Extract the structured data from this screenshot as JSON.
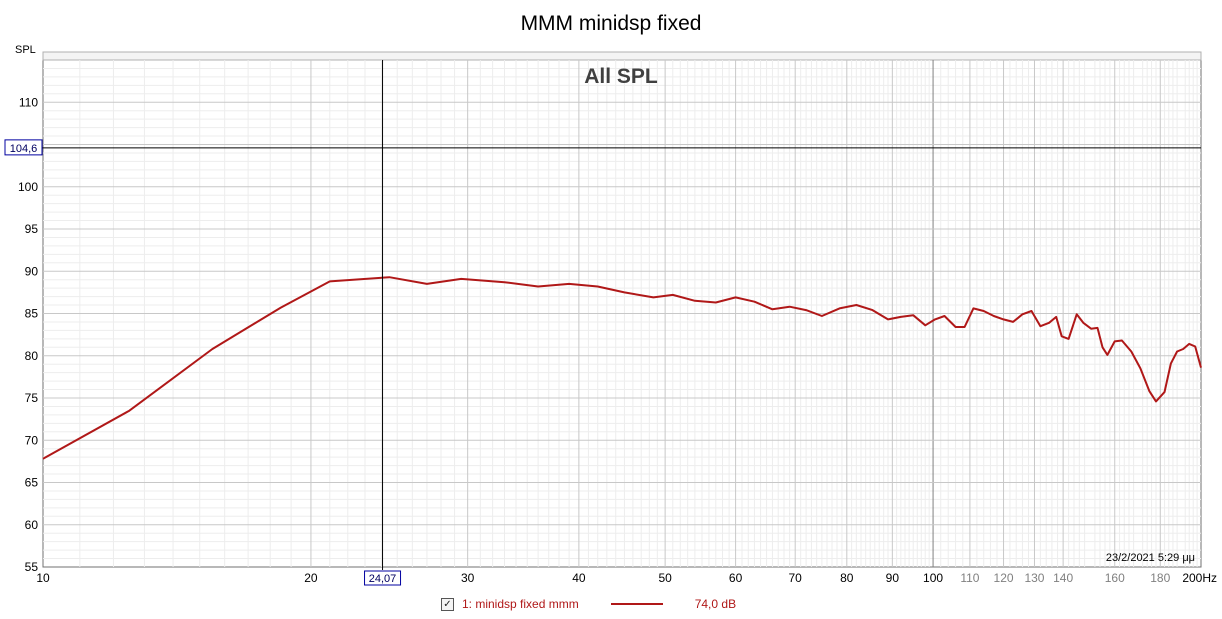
{
  "chart_data": {
    "type": "line",
    "title": "MMM minidsp fixed",
    "subtitle": "All SPL",
    "ylabel": "SPL",
    "xscale": "log",
    "xlim": [
      10,
      200
    ],
    "ylim": [
      55,
      115
    ],
    "grid": true,
    "x_ticks": [
      {
        "value": 10,
        "label": "10"
      },
      {
        "value": 20,
        "label": "20"
      },
      {
        "value": 30,
        "label": "30"
      },
      {
        "value": 40,
        "label": "40"
      },
      {
        "value": 50,
        "label": "50"
      },
      {
        "value": 60,
        "label": "60"
      },
      {
        "value": 70,
        "label": "70"
      },
      {
        "value": 80,
        "label": "80"
      },
      {
        "value": 90,
        "label": "90"
      },
      {
        "value": 100,
        "label": "100"
      },
      {
        "value": 110,
        "label": "110"
      },
      {
        "value": 120,
        "label": "120"
      },
      {
        "value": 130,
        "label": "130"
      },
      {
        "value": 140,
        "label": "140"
      },
      {
        "value": 160,
        "label": "160"
      },
      {
        "value": 180,
        "label": "180"
      },
      {
        "value": 200,
        "label": "200Hz"
      }
    ],
    "y_ticks": [
      55,
      60,
      65,
      70,
      75,
      80,
      85,
      90,
      95,
      100,
      110
    ],
    "cursor": {
      "x": 24.07,
      "x_label": "24,07",
      "y": 104.6,
      "y_label": "104,6"
    },
    "timestamp": "23/2/2021 5:29 μμ",
    "series": [
      {
        "name": "1: minidsp fixed mmm",
        "color": "#b01818",
        "legend_value": "74,0 dB",
        "x": [
          10,
          12.5,
          15.5,
          18.5,
          21,
          24.5,
          27,
          29.5,
          33,
          36,
          39,
          42,
          45,
          48.5,
          51,
          54,
          57,
          60,
          63,
          66,
          69,
          72,
          75,
          78.5,
          82,
          85.5,
          89,
          92,
          95,
          98,
          100.5,
          103,
          106,
          108.5,
          111,
          114,
          117,
          120,
          123,
          126,
          129,
          132,
          135,
          137.5,
          139.5,
          142,
          145,
          147.5,
          150.5,
          153,
          155,
          157,
          160,
          163,
          167,
          171,
          175,
          178,
          182,
          185,
          188,
          191,
          194,
          197,
          200
        ],
        "values": [
          67.8,
          73.5,
          80.8,
          85.7,
          88.8,
          89.3,
          88.5,
          89.1,
          88.7,
          88.2,
          88.5,
          88.2,
          87.5,
          86.9,
          87.2,
          86.5,
          86.3,
          86.9,
          86.4,
          85.5,
          85.8,
          85.4,
          84.7,
          85.6,
          86.0,
          85.4,
          84.3,
          84.6,
          84.8,
          83.6,
          84.3,
          84.7,
          83.4,
          83.4,
          85.6,
          85.3,
          84.7,
          84.3,
          84.0,
          84.9,
          85.3,
          83.5,
          83.9,
          84.6,
          82.3,
          82.0,
          84.9,
          83.9,
          83.2,
          83.3,
          81.0,
          80.1,
          81.7,
          81.8,
          80.5,
          78.5,
          75.8,
          74.6,
          75.7,
          79.1,
          80.5,
          80.8,
          81.4,
          81.1,
          78.6
        ]
      }
    ]
  }
}
